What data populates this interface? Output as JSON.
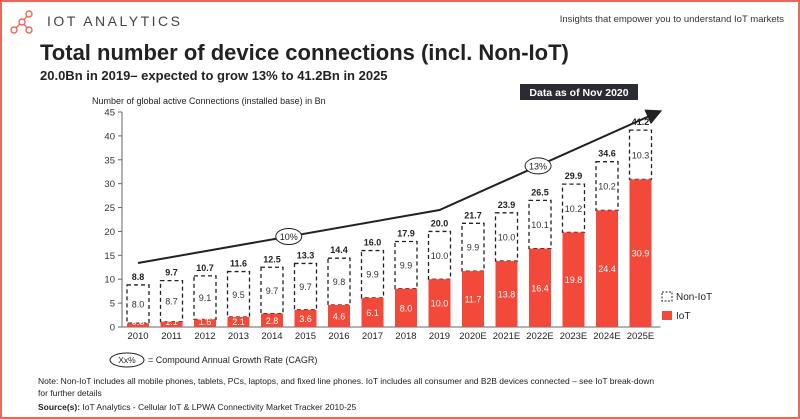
{
  "header": {
    "brand": "IOT ANALYTICS",
    "tagline": "Insights that empower you to understand IoT markets"
  },
  "colors": {
    "iot": "#f2493b",
    "border": "#e8685a",
    "badge": "#2b2b33"
  },
  "badge": "Data as of Nov 2020",
  "legend_note": {
    "symbol": "Xx%",
    "text": "= Compound Annual Growth Rate (CAGR)"
  },
  "note": [
    "Note: Non-IoT includes all mobile phones, tablets, PCs, laptops, and fixed line phones. IoT includes all consumer and B2B devices connected – see IoT break-down",
    "for further details"
  ],
  "source": {
    "label": "Source(s):",
    "text": " IoT Analytics - Cellular IoT & LPWA Connectivity Market Tracker 2010-25"
  },
  "chart_data": {
    "type": "bar",
    "stacked": true,
    "title": "Total number of device connections (incl. Non-IoT)",
    "subtitle": "20.0Bn in 2019– expected to grow 13% to 41.2Bn in 2025",
    "ylabel": "Number of global active Connections (installed base) in Bn",
    "ylim": [
      0,
      45
    ],
    "yticks": [
      0,
      5,
      10,
      15,
      20,
      25,
      30,
      35,
      40,
      45
    ],
    "categories": [
      "2010",
      "2011",
      "2012",
      "2013",
      "2014",
      "2015",
      "2016",
      "2017",
      "2018",
      "2019",
      "2020E",
      "2021E",
      "2022E",
      "2023E",
      "2024E",
      "2025E"
    ],
    "series": [
      {
        "name": "IoT",
        "values": [
          0.8,
          1.1,
          1.6,
          2.1,
          2.8,
          3.6,
          4.6,
          6.1,
          8.0,
          10.0,
          11.7,
          13.8,
          16.4,
          19.8,
          24.4,
          30.9
        ]
      },
      {
        "name": "Non-IoT",
        "values": [
          8.0,
          8.7,
          9.1,
          9.5,
          9.7,
          9.7,
          9.8,
          9.9,
          9.9,
          10.0,
          9.9,
          10.0,
          10.1,
          10.2,
          10.2,
          10.3
        ]
      }
    ],
    "totals": [
      8.8,
      9.7,
      10.7,
      11.6,
      12.5,
      13.3,
      14.4,
      16.0,
      17.9,
      20.0,
      21.7,
      23.9,
      26.5,
      29.9,
      34.6,
      41.2
    ],
    "cagr": [
      {
        "label": "10%",
        "from": "2010",
        "to": "2019"
      },
      {
        "label": "13%",
        "from": "2019",
        "to": "2025E"
      }
    ],
    "legend": [
      "Non-IoT",
      "IoT"
    ],
    "legend_position": "right"
  }
}
